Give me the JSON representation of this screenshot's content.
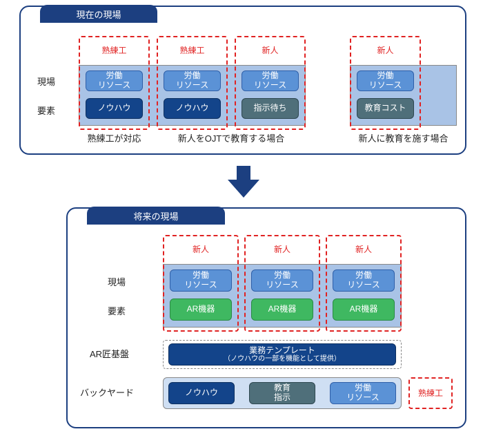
{
  "colors": {
    "panel_border": "#1c3f80",
    "panel_border_width": 2,
    "header_bg": "#1c3f80",
    "zone_fill": "#a9c3e6",
    "zone_border": "#888888",
    "red": "#e02222",
    "text": "#222222",
    "chip_labor_bg": "#5b92d6",
    "chip_labor_border": "#2f5fa8",
    "chip_knowhow_bg": "#13448a",
    "chip_knowhow_border": "#0c2f60",
    "chip_wait_bg": "#4f6f7a",
    "chip_wait_border": "#2e4750",
    "chip_educost_bg": "#4f6f7a",
    "chip_educost_border": "#2e4750",
    "chip_ar_bg": "#3fb861",
    "chip_ar_border": "#2a8a44",
    "chip_template_bg": "#13448a",
    "chip_template_border": "#0c2f60",
    "backyard_box_bg": "#cfdff3",
    "backyard_box_border": "#888888",
    "arrow": "#1c3f80"
  },
  "section_current": {
    "title": "現在の現場",
    "row_labels": {
      "genba": "現場",
      "youso": "要素"
    },
    "persona": {
      "skilled": "熟練工",
      "newbie": "新人"
    },
    "chips": {
      "labor": "労働\nリソース",
      "knowhow": "ノウハウ",
      "wait": "指示待ち",
      "educost": "教育コスト"
    },
    "footers": {
      "a": "熟練工が対応",
      "b": "新人をOJTで教育する場合",
      "c": "新人に教育を施す場合"
    }
  },
  "section_future": {
    "title": "将来の現場",
    "row_labels": {
      "genba": "現場",
      "youso": "要素",
      "ar_kiban": "AR匠基盤",
      "backyard": "バックヤード"
    },
    "persona": {
      "newbie": "新人",
      "skilled": "熟練工"
    },
    "chips": {
      "labor": "労働\nリソース",
      "ar": "AR機器",
      "template": "業務テンプレート",
      "template_sub": "（ノウハウの一部を機能として提供）",
      "knowhow": "ノウハウ",
      "edu_instr": "教育\n指示"
    }
  }
}
